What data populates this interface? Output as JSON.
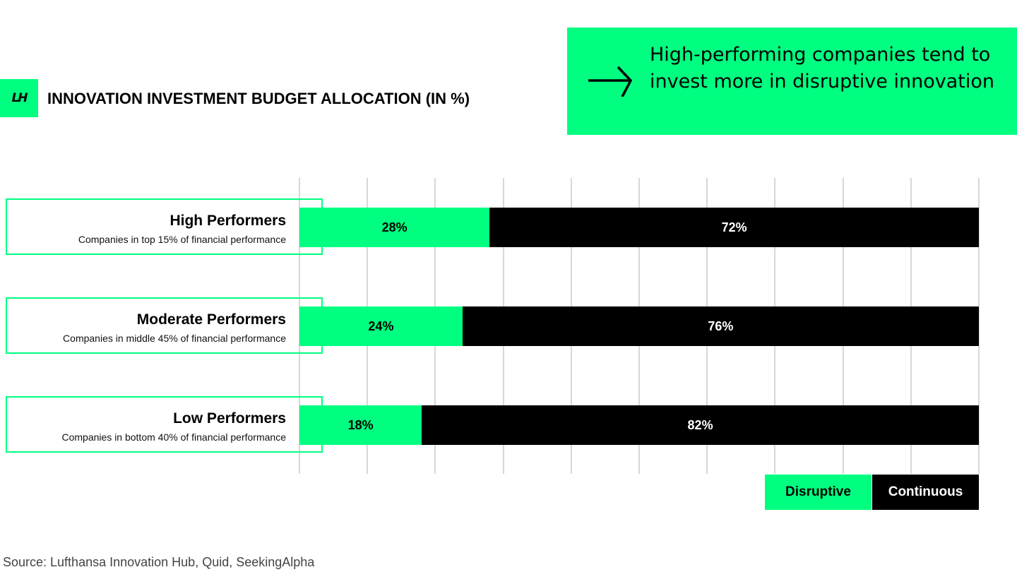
{
  "logo": {
    "text": "LH",
    "color": "#00ff80"
  },
  "callout": {
    "icon": "arrow-right-icon",
    "text": "High-performing companies tend to invest more in disruptive innovation",
    "background": "#00ff80"
  },
  "source": "Source: Lufthansa Innovation Hub, Quid, SeekingAlpha",
  "chart_data": {
    "type": "bar",
    "orientation": "horizontal",
    "stacked": true,
    "title": "INNOVATION INVESTMENT BUDGET ALLOCATION (IN %)",
    "xlim": [
      0,
      100
    ],
    "grid": true,
    "legend_position": "bottom-right",
    "categories": [
      "High Performers",
      "Moderate Performers",
      "Low Performers"
    ],
    "category_descriptions": [
      "Companies in top 15% of financial performance",
      "Companies in middle 45% of financial performance",
      "Companies in bottom 40% of financial performance"
    ],
    "series": [
      {
        "name": "Disruptive",
        "values": [
          28,
          24,
          18
        ],
        "labels": [
          "28%",
          "24%",
          "18%"
        ],
        "color": "#00ff80"
      },
      {
        "name": "Continuous",
        "values": [
          72,
          76,
          82
        ],
        "labels": [
          "72%",
          "76%",
          "82%"
        ],
        "color": "#000000"
      }
    ]
  }
}
